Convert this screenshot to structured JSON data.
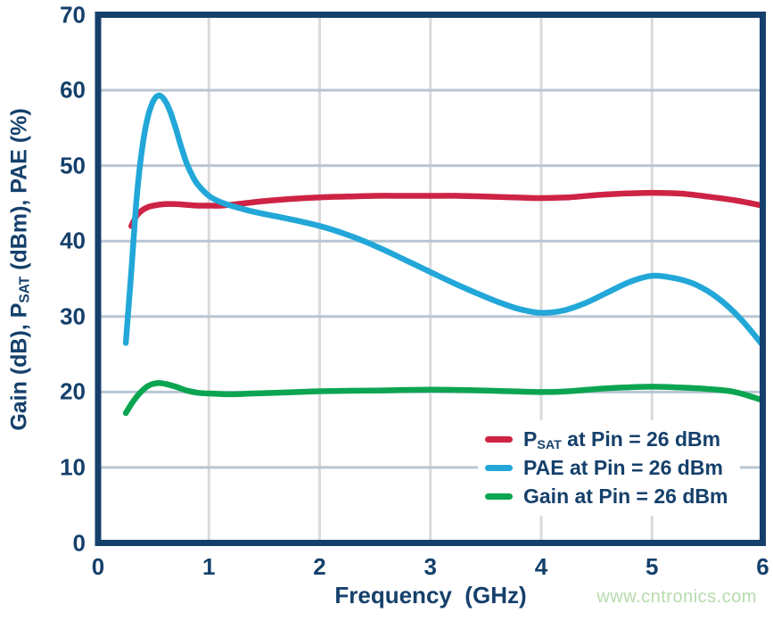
{
  "chart_data": {
    "type": "line",
    "title": "",
    "xlabel": "Frequency  (GHz)",
    "ylabel_parts": {
      "pre": "Gain (dB), P",
      "sub": "SAT",
      "post": " (dBm), PAE (%)"
    },
    "xlim": [
      0,
      6
    ],
    "ylim": [
      0,
      70
    ],
    "x_ticks": [
      0,
      1,
      2,
      3,
      4,
      5,
      6
    ],
    "y_ticks": [
      0,
      10,
      20,
      30,
      40,
      50,
      60,
      70
    ],
    "grid": "on",
    "legend_position": "lower right inside plot",
    "colors": {
      "axis": "#15406b",
      "text": "#15406b",
      "h_grid": "#b9c6d3",
      "v_grid": "#dadada",
      "psat": "#ce2344",
      "pae": "#22a7d8",
      "gain": "#0ba551",
      "watermark": "#b6dbac"
    },
    "series": [
      {
        "id": "psat",
        "name": "PSAT at Pin = 26 dBm",
        "color": "#ce2344",
        "points": [
          [
            0.3,
            42.0
          ],
          [
            0.35,
            43.4
          ],
          [
            0.4,
            44.1
          ],
          [
            0.45,
            44.5
          ],
          [
            0.5,
            44.7
          ],
          [
            0.6,
            44.9
          ],
          [
            0.7,
            44.9
          ],
          [
            0.8,
            44.8
          ],
          [
            0.9,
            44.7
          ],
          [
            1.0,
            44.7
          ],
          [
            1.1,
            44.7
          ],
          [
            1.25,
            44.9
          ],
          [
            1.5,
            45.3
          ],
          [
            1.75,
            45.6
          ],
          [
            2.0,
            45.8
          ],
          [
            2.25,
            45.9
          ],
          [
            2.5,
            46.0
          ],
          [
            2.75,
            46.0
          ],
          [
            3.0,
            46.0
          ],
          [
            3.25,
            46.0
          ],
          [
            3.5,
            45.9
          ],
          [
            3.75,
            45.8
          ],
          [
            4.0,
            45.7
          ],
          [
            4.25,
            45.8
          ],
          [
            4.5,
            46.1
          ],
          [
            4.75,
            46.3
          ],
          [
            5.0,
            46.4
          ],
          [
            5.25,
            46.3
          ],
          [
            5.5,
            45.9
          ],
          [
            5.75,
            45.4
          ],
          [
            6.0,
            44.7
          ]
        ]
      },
      {
        "id": "gain",
        "name": "Gain at Pin = 26 dBm",
        "color": "#0ba551",
        "points": [
          [
            0.25,
            17.2
          ],
          [
            0.3,
            18.4
          ],
          [
            0.35,
            19.4
          ],
          [
            0.4,
            20.2
          ],
          [
            0.45,
            20.8
          ],
          [
            0.5,
            21.1
          ],
          [
            0.55,
            21.2
          ],
          [
            0.6,
            21.1
          ],
          [
            0.7,
            20.7
          ],
          [
            0.8,
            20.2
          ],
          [
            0.9,
            19.9
          ],
          [
            1.0,
            19.8
          ],
          [
            1.2,
            19.7
          ],
          [
            1.4,
            19.8
          ],
          [
            1.6,
            19.9
          ],
          [
            1.8,
            20.0
          ],
          [
            2.0,
            20.1
          ],
          [
            2.5,
            20.2
          ],
          [
            3.0,
            20.3
          ],
          [
            3.5,
            20.2
          ],
          [
            4.0,
            20.0
          ],
          [
            4.25,
            20.1
          ],
          [
            4.5,
            20.4
          ],
          [
            4.75,
            20.6
          ],
          [
            5.0,
            20.7
          ],
          [
            5.25,
            20.6
          ],
          [
            5.5,
            20.4
          ],
          [
            5.75,
            20.0
          ],
          [
            6.0,
            18.9
          ]
        ]
      },
      {
        "id": "pae",
        "name": "PAE at Pin = 26 dBm",
        "color": "#22a7d8",
        "points": [
          [
            0.25,
            26.5
          ],
          [
            0.3,
            36.0
          ],
          [
            0.35,
            46.0
          ],
          [
            0.4,
            52.5
          ],
          [
            0.45,
            56.5
          ],
          [
            0.5,
            58.6
          ],
          [
            0.55,
            59.3
          ],
          [
            0.6,
            58.7
          ],
          [
            0.65,
            57.2
          ],
          [
            0.7,
            55.0
          ],
          [
            0.75,
            52.5
          ],
          [
            0.8,
            50.3
          ],
          [
            0.85,
            48.7
          ],
          [
            0.9,
            47.5
          ],
          [
            1.0,
            46.0
          ],
          [
            1.1,
            45.2
          ],
          [
            1.2,
            44.7
          ],
          [
            1.4,
            43.9
          ],
          [
            1.6,
            43.3
          ],
          [
            1.8,
            42.7
          ],
          [
            2.0,
            42.0
          ],
          [
            2.2,
            41.1
          ],
          [
            2.4,
            40.0
          ],
          [
            2.6,
            38.7
          ],
          [
            2.8,
            37.3
          ],
          [
            3.0,
            35.9
          ],
          [
            3.2,
            34.5
          ],
          [
            3.4,
            33.2
          ],
          [
            3.6,
            32.0
          ],
          [
            3.8,
            31.0
          ],
          [
            4.0,
            30.5
          ],
          [
            4.2,
            30.8
          ],
          [
            4.4,
            31.8
          ],
          [
            4.6,
            33.2
          ],
          [
            4.8,
            34.6
          ],
          [
            5.0,
            35.4
          ],
          [
            5.2,
            35.1
          ],
          [
            5.4,
            34.2
          ],
          [
            5.6,
            32.4
          ],
          [
            5.8,
            29.7
          ],
          [
            6.0,
            26.2
          ]
        ]
      }
    ],
    "legend": {
      "items": [
        {
          "pre": "P",
          "sub": "SAT",
          "post": " at Pin = 26 dBm",
          "color": "#ce2344",
          "series_id": "psat"
        },
        {
          "pre": "PAE at Pin = 26 dBm",
          "sub": "",
          "post": "",
          "color": "#22a7d8",
          "series_id": "pae"
        },
        {
          "pre": "Gain at Pin = 26 dBm",
          "sub": "",
          "post": "",
          "color": "#0ba551",
          "series_id": "gain"
        }
      ]
    }
  },
  "watermark": {
    "text": "www.cntronics.com"
  }
}
